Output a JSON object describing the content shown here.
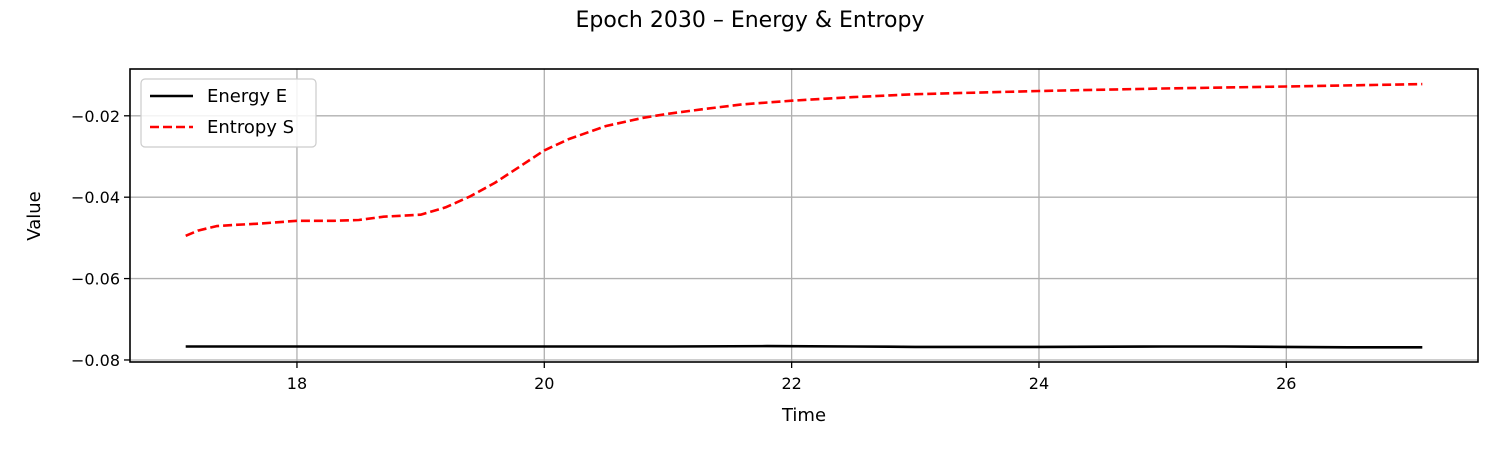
{
  "chart_data": {
    "type": "line",
    "title": "Epoch 2030 – Energy & Entropy",
    "xlabel": "Time",
    "ylabel": "Value",
    "xlim": [
      16.65,
      27.55
    ],
    "ylim": [
      -0.0805,
      -0.0085
    ],
    "xticks": [
      18,
      20,
      22,
      24,
      26
    ],
    "yticks": [
      -0.08,
      -0.06,
      -0.04,
      -0.02
    ],
    "xtick_labels": [
      "18",
      "20",
      "22",
      "24",
      "26"
    ],
    "ytick_labels": [
      "−0.08",
      "−0.06",
      "−0.04",
      "−0.02"
    ],
    "grid": true,
    "legend_position": "top-left",
    "series": [
      {
        "name": "Energy E",
        "color": "#000000",
        "style": "solid",
        "x": [
          17.1,
          18.0,
          19.0,
          20.0,
          21.0,
          21.8,
          22.5,
          23.0,
          24.0,
          25.0,
          25.5,
          26.0,
          26.5,
          27.1
        ],
        "y": [
          -0.0767,
          -0.0767,
          -0.0767,
          -0.0767,
          -0.0767,
          -0.0766,
          -0.0767,
          -0.0768,
          -0.0768,
          -0.0767,
          -0.0767,
          -0.0768,
          -0.0769,
          -0.0769
        ]
      },
      {
        "name": "Entropy S",
        "color": "#ff0000",
        "style": "dashed",
        "x": [
          17.1,
          17.2,
          17.35,
          17.5,
          17.7,
          18.0,
          18.3,
          18.5,
          18.7,
          19.0,
          19.2,
          19.4,
          19.6,
          19.8,
          20.0,
          20.2,
          20.5,
          20.8,
          21.0,
          21.3,
          21.6,
          22.0,
          22.5,
          23.0,
          24.0,
          25.0,
          26.0,
          27.1
        ],
        "y": [
          -0.0495,
          -0.0482,
          -0.0471,
          -0.0468,
          -0.0465,
          -0.0458,
          -0.0458,
          -0.0456,
          -0.0448,
          -0.0443,
          -0.0425,
          -0.0398,
          -0.0365,
          -0.0325,
          -0.0285,
          -0.0257,
          -0.0225,
          -0.0205,
          -0.0195,
          -0.0183,
          -0.0172,
          -0.0163,
          -0.0154,
          -0.0147,
          -0.0139,
          -0.0133,
          -0.0128,
          -0.0122
        ]
      }
    ]
  }
}
